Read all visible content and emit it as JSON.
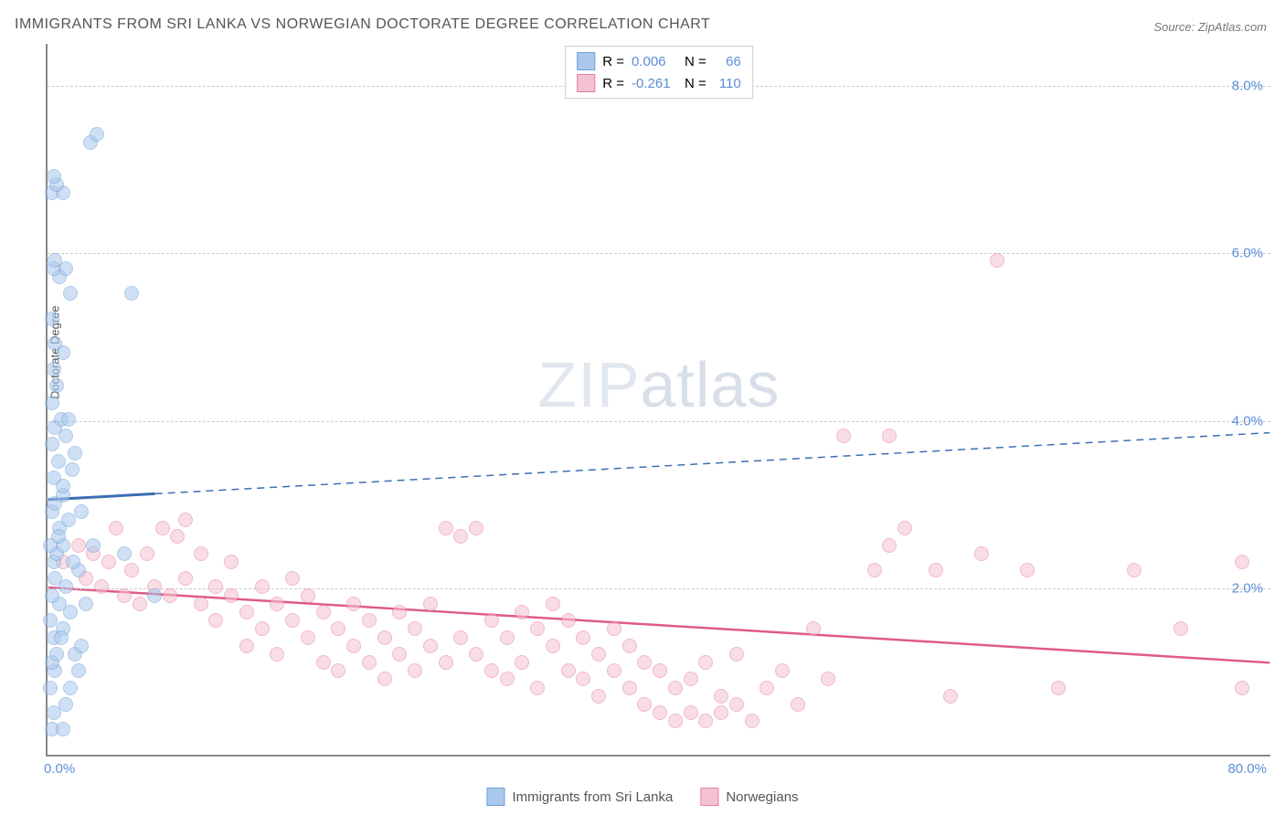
{
  "title": "IMMIGRANTS FROM SRI LANKA VS NORWEGIAN DOCTORATE DEGREE CORRELATION CHART",
  "source_label": "Source: ZipAtlas.com",
  "ylabel": "Doctorate Degree",
  "watermark_bold": "ZIP",
  "watermark_thin": "atlas",
  "xmin": 0.0,
  "xmax": 80.0,
  "ymin": 0.0,
  "ymax": 8.5,
  "yticks": [
    2.0,
    4.0,
    6.0,
    8.0
  ],
  "ytick_labels": [
    "2.0%",
    "4.0%",
    "6.0%",
    "8.0%"
  ],
  "xtick_left": "0.0%",
  "xtick_right": "80.0%",
  "series": {
    "a": {
      "label": "Immigrants from Sri Lanka",
      "color_fill": "#a9c8ec",
      "color_stroke": "#6f9fd8",
      "r_value": "0.006",
      "n_value": "66",
      "trend": {
        "x1": 0,
        "y1": 3.05,
        "x2": 80,
        "y2": 3.85,
        "solid_until_x": 7
      },
      "points": [
        [
          0.3,
          0.3
        ],
        [
          1.0,
          0.3
        ],
        [
          0.4,
          0.5
        ],
        [
          1.2,
          0.6
        ],
        [
          0.2,
          0.8
        ],
        [
          1.5,
          0.8
        ],
        [
          0.5,
          1.0
        ],
        [
          2.0,
          1.0
        ],
        [
          0.3,
          1.1
        ],
        [
          1.8,
          1.2
        ],
        [
          0.6,
          1.2
        ],
        [
          2.2,
          1.3
        ],
        [
          0.4,
          1.4
        ],
        [
          1.0,
          1.5
        ],
        [
          0.2,
          1.6
        ],
        [
          1.5,
          1.7
        ],
        [
          0.8,
          1.8
        ],
        [
          2.5,
          1.8
        ],
        [
          0.3,
          1.9
        ],
        [
          1.2,
          2.0
        ],
        [
          0.5,
          2.1
        ],
        [
          2.0,
          2.2
        ],
        [
          0.4,
          2.3
        ],
        [
          1.7,
          2.3
        ],
        [
          0.6,
          2.4
        ],
        [
          1.0,
          2.5
        ],
        [
          0.2,
          2.5
        ],
        [
          3.0,
          2.5
        ],
        [
          5.0,
          2.4
        ],
        [
          7.0,
          1.9
        ],
        [
          0.8,
          2.7
        ],
        [
          1.4,
          2.8
        ],
        [
          0.3,
          2.9
        ],
        [
          2.2,
          2.9
        ],
        [
          0.5,
          3.0
        ],
        [
          1.0,
          3.1
        ],
        [
          0.4,
          3.3
        ],
        [
          1.6,
          3.4
        ],
        [
          0.7,
          3.5
        ],
        [
          0.3,
          3.7
        ],
        [
          1.2,
          3.8
        ],
        [
          0.5,
          3.9
        ],
        [
          0.9,
          4.0
        ],
        [
          0.3,
          4.2
        ],
        [
          1.4,
          4.0
        ],
        [
          0.6,
          4.4
        ],
        [
          0.4,
          4.6
        ],
        [
          1.0,
          4.8
        ],
        [
          0.5,
          4.9
        ],
        [
          1.8,
          3.6
        ],
        [
          0.3,
          5.2
        ],
        [
          1.5,
          5.5
        ],
        [
          5.5,
          5.5
        ],
        [
          0.8,
          5.7
        ],
        [
          0.4,
          5.8
        ],
        [
          1.2,
          5.8
        ],
        [
          0.5,
          5.9
        ],
        [
          0.3,
          6.7
        ],
        [
          1.0,
          6.7
        ],
        [
          0.6,
          6.8
        ],
        [
          0.4,
          6.9
        ],
        [
          2.8,
          7.3
        ],
        [
          3.2,
          7.4
        ],
        [
          1.0,
          3.2
        ],
        [
          0.7,
          2.6
        ],
        [
          0.9,
          1.4
        ]
      ]
    },
    "b": {
      "label": "Norwegians",
      "color_fill": "#f4c2d0",
      "color_stroke": "#e87fa3",
      "r_value": "-0.261",
      "n_value": "110",
      "trend": {
        "x1": 0,
        "y1": 2.0,
        "x2": 80,
        "y2": 1.1,
        "solid_until_x": 80
      },
      "points": [
        [
          1,
          2.3
        ],
        [
          2,
          2.5
        ],
        [
          2.5,
          2.1
        ],
        [
          3,
          2.4
        ],
        [
          3.5,
          2.0
        ],
        [
          4,
          2.3
        ],
        [
          4.5,
          2.7
        ],
        [
          5,
          1.9
        ],
        [
          5.5,
          2.2
        ],
        [
          6,
          1.8
        ],
        [
          6.5,
          2.4
        ],
        [
          7,
          2.0
        ],
        [
          7.5,
          2.7
        ],
        [
          8,
          1.9
        ],
        [
          8.5,
          2.6
        ],
        [
          9,
          2.1
        ],
        [
          9,
          2.8
        ],
        [
          10,
          1.8
        ],
        [
          10,
          2.4
        ],
        [
          11,
          2.0
        ],
        [
          11,
          1.6
        ],
        [
          12,
          1.9
        ],
        [
          12,
          2.3
        ],
        [
          13,
          1.7
        ],
        [
          13,
          1.3
        ],
        [
          14,
          2.0
        ],
        [
          14,
          1.5
        ],
        [
          15,
          1.8
        ],
        [
          15,
          1.2
        ],
        [
          16,
          1.6
        ],
        [
          16,
          2.1
        ],
        [
          17,
          1.4
        ],
        [
          17,
          1.9
        ],
        [
          18,
          1.1
        ],
        [
          18,
          1.7
        ],
        [
          19,
          1.5
        ],
        [
          19,
          1.0
        ],
        [
          20,
          1.3
        ],
        [
          20,
          1.8
        ],
        [
          21,
          1.1
        ],
        [
          21,
          1.6
        ],
        [
          22,
          1.4
        ],
        [
          22,
          0.9
        ],
        [
          23,
          1.7
        ],
        [
          23,
          1.2
        ],
        [
          24,
          1.5
        ],
        [
          24,
          1.0
        ],
        [
          25,
          1.3
        ],
        [
          25,
          1.8
        ],
        [
          26,
          1.1
        ],
        [
          26,
          2.7
        ],
        [
          27,
          1.4
        ],
        [
          27,
          2.6
        ],
        [
          28,
          1.2
        ],
        [
          28,
          2.7
        ],
        [
          29,
          1.0
        ],
        [
          29,
          1.6
        ],
        [
          30,
          0.9
        ],
        [
          30,
          1.4
        ],
        [
          31,
          1.7
        ],
        [
          31,
          1.1
        ],
        [
          32,
          1.5
        ],
        [
          32,
          0.8
        ],
        [
          33,
          1.3
        ],
        [
          33,
          1.8
        ],
        [
          34,
          1.0
        ],
        [
          34,
          1.6
        ],
        [
          35,
          0.9
        ],
        [
          35,
          1.4
        ],
        [
          36,
          1.2
        ],
        [
          36,
          0.7
        ],
        [
          37,
          1.5
        ],
        [
          37,
          1.0
        ],
        [
          38,
          0.8
        ],
        [
          38,
          1.3
        ],
        [
          39,
          1.1
        ],
        [
          39,
          0.6
        ],
        [
          40,
          0.5
        ],
        [
          40,
          1.0
        ],
        [
          41,
          0.8
        ],
        [
          41,
          0.4
        ],
        [
          42,
          0.5
        ],
        [
          42,
          0.9
        ],
        [
          43,
          0.4
        ],
        [
          43,
          1.1
        ],
        [
          44,
          0.7
        ],
        [
          44,
          0.5
        ],
        [
          45,
          1.2
        ],
        [
          45,
          0.6
        ],
        [
          46,
          0.4
        ],
        [
          47,
          0.8
        ],
        [
          48,
          1.0
        ],
        [
          49,
          0.6
        ],
        [
          50,
          1.5
        ],
        [
          51,
          0.9
        ],
        [
          52,
          3.8
        ],
        [
          54,
          2.2
        ],
        [
          55,
          3.8
        ],
        [
          55,
          2.5
        ],
        [
          56,
          2.7
        ],
        [
          58,
          2.2
        ],
        [
          59,
          0.7
        ],
        [
          61,
          2.4
        ],
        [
          62,
          5.9
        ],
        [
          64,
          2.2
        ],
        [
          66,
          0.8
        ],
        [
          71,
          2.2
        ],
        [
          74,
          1.5
        ],
        [
          78,
          0.8
        ],
        [
          78,
          2.3
        ]
      ]
    }
  },
  "legend_text": {
    "r_label": "R =",
    "n_label": "N ="
  },
  "value_color": "#5b8dd6",
  "text_color": "#555555"
}
